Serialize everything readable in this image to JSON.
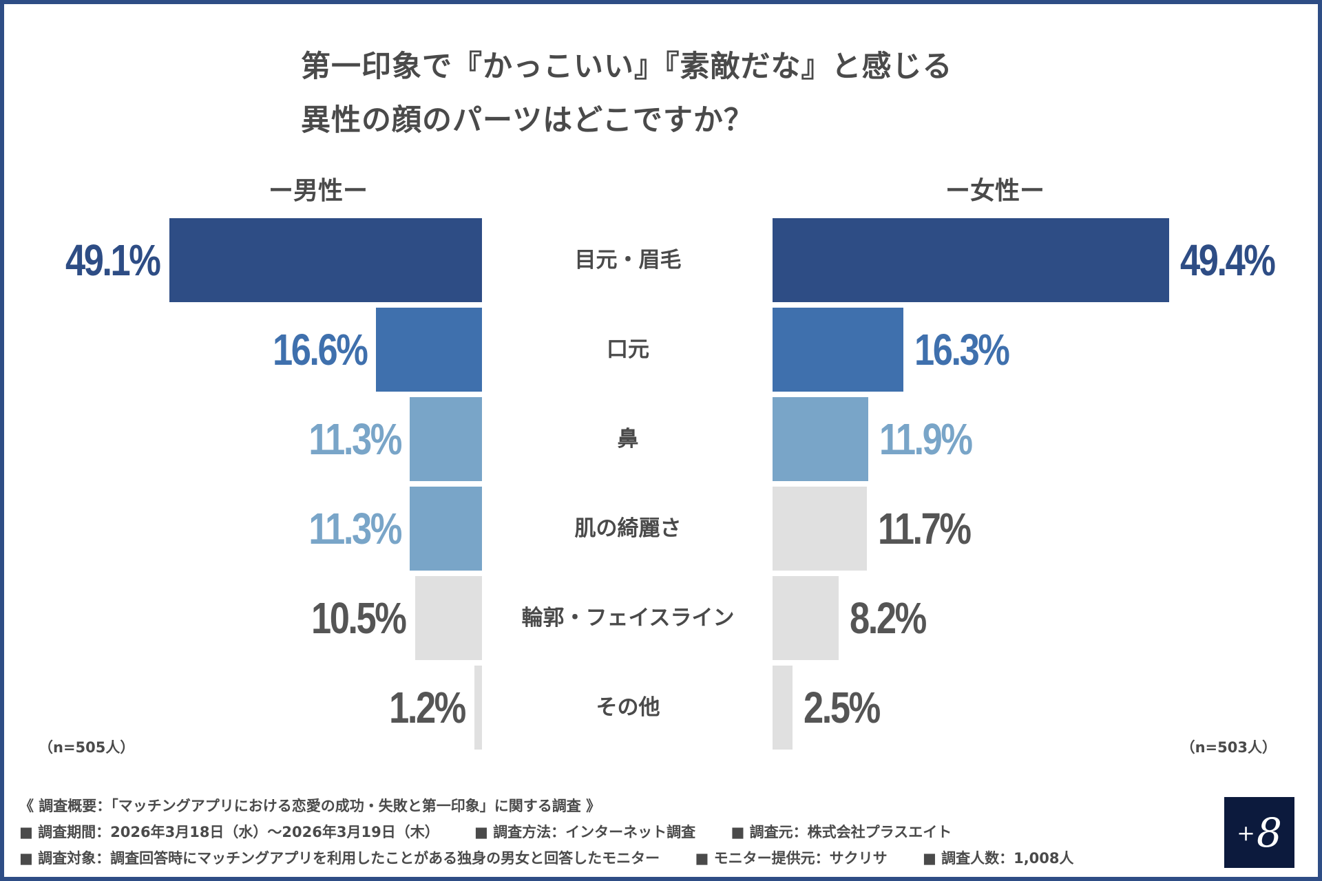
{
  "title": {
    "line1": "第一印象で『かっこいい』『素敵だな』と感じる",
    "line2": "異性の顔のパーツはどこですか？"
  },
  "colors": {
    "frame": "#2e4d85",
    "dark_blue": "#2e4d85",
    "mid_blue": "#3f70ad",
    "light_blue": "#79a5c8",
    "gray": "#e0e0e0",
    "gray_text": "#555555"
  },
  "chart_data": {
    "type": "bar",
    "orientation": "horizontal-butterfly",
    "categories": [
      "目元・眉毛",
      "口元",
      "鼻",
      "肌の綺麗さ",
      "輪郭・フェイスライン",
      "その他"
    ],
    "series": [
      {
        "name": "ー男性ー",
        "values": [
          49.1,
          16.6,
          11.3,
          11.3,
          10.5,
          1.2
        ],
        "labels": [
          "49.1%",
          "16.6%",
          "11.3%",
          "11.3%",
          "10.5%",
          "1.2%"
        ],
        "color_levels": [
          "dark_blue",
          "mid_blue",
          "light_blue",
          "light_blue",
          "gray",
          "gray"
        ],
        "n": "（n=505人）"
      },
      {
        "name": "ー女性ー",
        "values": [
          49.4,
          16.3,
          11.9,
          11.7,
          8.2,
          2.5
        ],
        "labels": [
          "49.4%",
          "16.3%",
          "11.9%",
          "11.7%",
          "8.2%",
          "2.5%"
        ],
        "color_levels": [
          "dark_blue",
          "mid_blue",
          "light_blue",
          "gray",
          "gray",
          "gray"
        ],
        "n": "（n=503人）"
      }
    ],
    "unit": "%"
  },
  "footer": {
    "heading": "《 調査概要：「マッチングアプリにおける恋愛の成功・失敗と第一印象」に関する調査 》",
    "period": "■ 調査期間：2026年3月18日（水）～2026年3月19日（木）",
    "method": "■ 調査方法：インターネット調査",
    "source": "■ 調査元：株式会社プラスエイト",
    "target": "■ 調査対象：調査回答時にマッチングアプリを利用したことがある独身の男女と回答したモニター",
    "provider": "■ モニター提供元：サクリサ",
    "count": "■ 調査人数：1,008人"
  },
  "logo": {
    "plus": "+",
    "eight": "8"
  }
}
